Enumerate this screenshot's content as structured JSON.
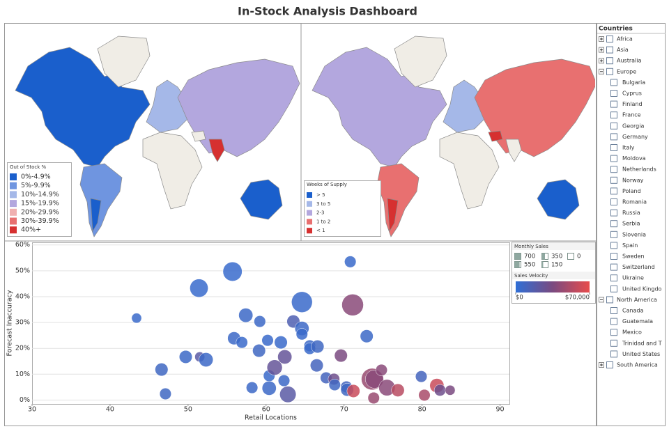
{
  "title": "In-Stock Analysis Dashboard",
  "chart_data": [
    {
      "type": "map",
      "legend": {
        "title": "Out of Stock %",
        "items": [
          {
            "label": "0%-4.9%",
            "color": "#1a5fcc"
          },
          {
            "label": "5%-9.9%",
            "color": "#6f95e0"
          },
          {
            "label": "10%-14.9%",
            "color": "#a5b8e8"
          },
          {
            "label": "15%-19.9%",
            "color": "#b3a7de"
          },
          {
            "label": "20%-29.9%",
            "color": "#f0b0b0"
          },
          {
            "label": "30%-39.9%",
            "color": "#e87070"
          },
          {
            "label": "40%+",
            "color": "#d63030"
          }
        ]
      }
    },
    {
      "type": "map",
      "legend": {
        "title": "Weeks of Supply",
        "items": [
          {
            "label": "> 5",
            "color": "#1a5fcc"
          },
          {
            "label": "3 to 5",
            "color": "#a5b8e8"
          },
          {
            "label": "2-3",
            "color": "#b3a7de"
          },
          {
            "label": "1 to 2",
            "color": "#e87070"
          },
          {
            "label": "< 1",
            "color": "#d63030"
          }
        ]
      }
    },
    {
      "type": "bubble",
      "xlabel": "Retail Locations",
      "ylabel": "Forecast Inaccuracy",
      "xlim": [
        30,
        91.2
      ],
      "ylim": [
        -1.5,
        61
      ],
      "xticks": [
        30,
        40,
        50,
        60,
        70,
        80,
        90
      ],
      "yticks": [
        {
          "value": 0,
          "label": "0%"
        },
        {
          "value": 10,
          "label": "10%"
        },
        {
          "value": 20,
          "label": "20%"
        },
        {
          "value": 30,
          "label": "30%"
        },
        {
          "value": 40,
          "label": "40%"
        },
        {
          "value": 50,
          "label": "50%"
        },
        {
          "value": 60,
          "label": "60%"
        }
      ],
      "grid": true,
      "x": [
        43.4,
        46.6,
        47.1,
        49.7,
        51.4,
        51.5,
        52.3,
        55.7,
        55.9,
        56.9,
        57.4,
        58.2,
        59.2,
        59.1,
        60.2,
        60.4,
        60.4,
        61.1,
        61.9,
        62.3,
        62.8,
        63.5,
        62.4,
        64.6,
        64.6,
        64.6,
        65.6,
        65.6,
        66.6,
        66.5,
        67.7,
        68.7,
        68.8,
        69.6,
        70.3,
        70.4,
        70.8,
        71.1,
        71.2,
        72.9,
        73.6,
        73.9,
        73.8,
        74.8,
        75.5,
        76.9,
        79.9,
        80.3,
        81.9,
        82.3,
        83.6
      ],
      "y": [
        31.7,
        11.8,
        2.4,
        16.7,
        43.3,
        16.7,
        15.6,
        49.7,
        23.9,
        22.3,
        32.8,
        4.8,
        30.4,
        19.1,
        23.1,
        9.4,
        4.6,
        12.6,
        22.3,
        7.5,
        2.2,
        30.4,
        16.7,
        37.9,
        27.7,
        25.5,
        21.0,
        19.9,
        20.7,
        13.4,
        8.6,
        8.1,
        5.9,
        17.2,
        5.1,
        4.0,
        53.5,
        36.8,
        3.5,
        24.7,
        8.1,
        8.1,
        0.8,
        11.6,
        4.8,
        3.8,
        9.1,
        1.9,
        5.6,
        3.8,
        3.8
      ],
      "size": [
        150,
        250,
        200,
        250,
        500,
        150,
        300,
        550,
        250,
        200,
        300,
        200,
        200,
        250,
        200,
        200,
        300,
        350,
        250,
        200,
        400,
        250,
        300,
        650,
        300,
        200,
        200,
        200,
        250,
        250,
        200,
        200,
        200,
        250,
        200,
        250,
        200,
        700,
        250,
        250,
        700,
        500,
        200,
        200,
        400,
        250,
        200,
        200,
        300,
        200,
        150
      ],
      "velocity": [
        5000,
        8000,
        8000,
        6000,
        4000,
        20000,
        6000,
        4000,
        6000,
        5000,
        6000,
        6000,
        6000,
        8000,
        5000,
        5000,
        6000,
        25000,
        5000,
        6000,
        20000,
        15000,
        25000,
        5000,
        6000,
        5000,
        6000,
        5000,
        8000,
        10000,
        10000,
        30000,
        8000,
        35000,
        10000,
        8000,
        5000,
        40000,
        60000,
        6000,
        45000,
        40000,
        45000,
        40000,
        40000,
        55000,
        10000,
        50000,
        60000,
        30000,
        35000
      ],
      "size_legend": {
        "title": "Monthly Sales",
        "values": [
          700,
          350,
          0,
          550,
          150
        ]
      },
      "color_legend": {
        "title": "Sales Velocity",
        "colors": [
          "#2f6fd6",
          "#7a4a80",
          "#e84c4c"
        ],
        "ticks": [
          {
            "value": 0,
            "label": "$0"
          },
          {
            "value": 70000,
            "label": "$70,000"
          }
        ]
      }
    }
  ],
  "countries": {
    "title": "Countries",
    "groups": [
      {
        "name": "Africa",
        "expanded": false
      },
      {
        "name": "Asia",
        "expanded": false
      },
      {
        "name": "Australia",
        "expanded": false
      },
      {
        "name": "Europe",
        "expanded": true,
        "children": [
          "Bulgaria",
          "Cyprus",
          "Finland",
          "France",
          "Georgia",
          "Germany",
          "Italy",
          "Moldova",
          "Netherlands",
          "Norway",
          "Poland",
          "Romania",
          "Russia",
          "Serbia",
          "Slovenia",
          "Spain",
          "Sweden",
          "Switzerland",
          "Ukraine",
          "United Kingdo"
        ]
      },
      {
        "name": "North America",
        "expanded": true,
        "children": [
          "Canada",
          "Guatemala",
          "Mexico",
          "Trinidad and T",
          "United States"
        ]
      },
      {
        "name": "South America",
        "expanded": false
      }
    ]
  }
}
